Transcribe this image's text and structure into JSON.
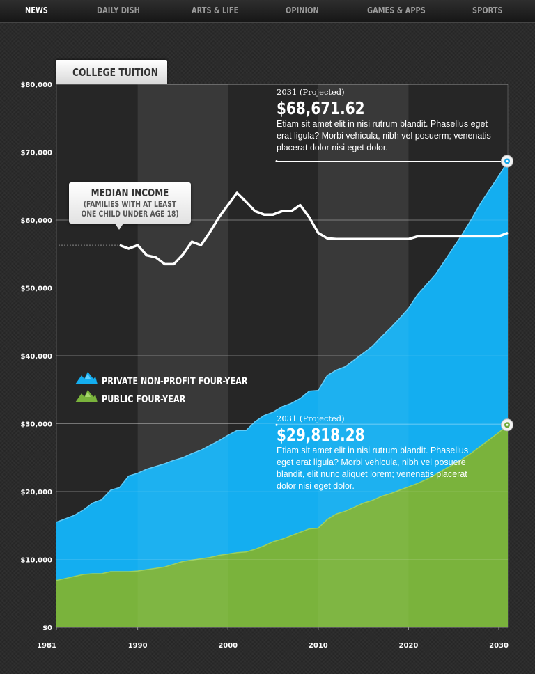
{
  "nav": {
    "items": [
      {
        "label": "NEWS",
        "active": true
      },
      {
        "label": "DAILY DISH",
        "active": false
      },
      {
        "label": "ARTS & LIFE",
        "active": false
      },
      {
        "label": "OPINION",
        "active": false
      },
      {
        "label": "GAMES & APPS",
        "active": false
      },
      {
        "label": "SPORTS",
        "active": false
      }
    ]
  },
  "tab": {
    "label": "COLLEGE TUITION"
  },
  "median_callout": {
    "title": "MEDIAN INCOME",
    "line1": "(FAMILIES WITH AT LEAST",
    "line2": "ONE CHILD UNDER AGE 18)"
  },
  "legend": {
    "private": {
      "label": "PRIVATE NON-PROFIT FOUR-YEAR",
      "icon": "mountain-icon",
      "color": "#14aef0"
    },
    "public": {
      "label": "PUBLIC FOUR-YEAR",
      "icon": "mountain-icon",
      "color": "#7ab33c"
    }
  },
  "annotations": {
    "private": {
      "year": "2031 (Projected)",
      "amount": "$68,671.62",
      "text": "Etiam sit amet elit in nisi rutrum blandit. Phasellus eget erat ligula? Morbi vehicula, nibh vel posuerm; venenatis placerat dolor nisi eget dolor."
    },
    "public": {
      "year": "2031 (Projected)",
      "amount": "$29,818.28",
      "text": "Etiam sit amet elit in nisi rutrum blandit. Phasellus eget erat ligula? Morbi vehicula, nibh vel posuere blandit, elit nunc aliquet lorem; venenatis placerat dolor nisi eget dolor."
    }
  },
  "chart_data": {
    "type": "area",
    "title": "COLLEGE TUITION",
    "xlim": [
      1981,
      2031
    ],
    "ylim": [
      0,
      80000
    ],
    "xticks": [
      {
        "value": 1981,
        "label": "1981"
      },
      {
        "value": 1990,
        "label": "1990"
      },
      {
        "value": 2000,
        "label": "2000"
      },
      {
        "value": 2010,
        "label": "2010"
      },
      {
        "value": 2020,
        "label": "2020"
      },
      {
        "value": 2030,
        "label": "2030"
      }
    ],
    "yticks": [
      {
        "value": 0,
        "label": "$0"
      },
      {
        "value": 10000,
        "label": "$10,000"
      },
      {
        "value": 20000,
        "label": "$20,000"
      },
      {
        "value": 30000,
        "label": "$30,000"
      },
      {
        "value": 40000,
        "label": "$40,000"
      },
      {
        "value": 50000,
        "label": "$50,000"
      },
      {
        "value": 60000,
        "label": "$60,000"
      },
      {
        "value": 70000,
        "label": "$70,000"
      },
      {
        "value": 80000,
        "label": "$80,000"
      }
    ],
    "x": [
      1981,
      1982,
      1983,
      1984,
      1985,
      1986,
      1987,
      1988,
      1989,
      1990,
      1991,
      1992,
      1993,
      1994,
      1995,
      1996,
      1997,
      1998,
      1999,
      2000,
      2001,
      2002,
      2003,
      2004,
      2005,
      2006,
      2007,
      2008,
      2009,
      2010,
      2011,
      2012,
      2013,
      2014,
      2015,
      2016,
      2017,
      2018,
      2019,
      2020,
      2021,
      2022,
      2023,
      2024,
      2025,
      2026,
      2027,
      2028,
      2029,
      2030,
      2031
    ],
    "series": [
      {
        "name": "PRIVATE NON-PROFIT FOUR-YEAR",
        "color": "#14aef0",
        "values": [
          15500,
          16000,
          16500,
          17300,
          18300,
          18800,
          20200,
          20600,
          22300,
          22700,
          23300,
          23700,
          24100,
          24600,
          25000,
          25600,
          26100,
          26800,
          27500,
          28300,
          29000,
          29000,
          30300,
          31200,
          31700,
          32500,
          33000,
          33700,
          34800,
          34900,
          37100,
          37900,
          38400,
          39400,
          40400,
          41400,
          42800,
          44100,
          45500,
          47000,
          49000,
          50500,
          52000,
          54000,
          56000,
          58000,
          60200,
          62500,
          64500,
          66500,
          68671.62
        ]
      },
      {
        "name": "PUBLIC FOUR-YEAR",
        "color": "#7ab33c",
        "values": [
          6900,
          7200,
          7500,
          7800,
          7900,
          7900,
          8200,
          8200,
          8200,
          8300,
          8500,
          8700,
          8900,
          9300,
          9700,
          9900,
          10100,
          10300,
          10600,
          10800,
          11000,
          11100,
          11500,
          12000,
          12600,
          13000,
          13500,
          14000,
          14500,
          14600,
          15900,
          16700,
          17100,
          17700,
          18300,
          18700,
          19300,
          19700,
          20200,
          20700,
          21200,
          21800,
          22500,
          23300,
          24000,
          24800,
          25700,
          26700,
          27700,
          28700,
          29818.28
        ]
      },
      {
        "name": "MEDIAN INCOME",
        "color": "#ffffff",
        "x": [
          1988,
          1989,
          1990,
          1991,
          1992,
          1993,
          1994,
          1995,
          1996,
          1997,
          1998,
          1999,
          2000,
          2001,
          2002,
          2003,
          2004,
          2005,
          2006,
          2007,
          2008,
          2009,
          2010,
          2011,
          2012,
          2013,
          2014,
          2015,
          2016,
          2017,
          2018,
          2019,
          2020,
          2021,
          2022,
          2023,
          2024,
          2025,
          2026,
          2027,
          2028,
          2029,
          2030,
          2031
        ],
        "values": [
          56300,
          55800,
          56300,
          54800,
          54500,
          53500,
          53500,
          54900,
          56800,
          56300,
          58200,
          60400,
          62200,
          64000,
          62700,
          61300,
          60800,
          60800,
          61300,
          61300,
          62200,
          60400,
          58100,
          57300,
          57200,
          57200,
          57200,
          57200,
          57200,
          57200,
          57200,
          57200,
          57200,
          57600,
          57600,
          57600,
          57600,
          57600,
          57600,
          57600,
          57600,
          57600,
          57600,
          58100
        ]
      }
    ]
  }
}
